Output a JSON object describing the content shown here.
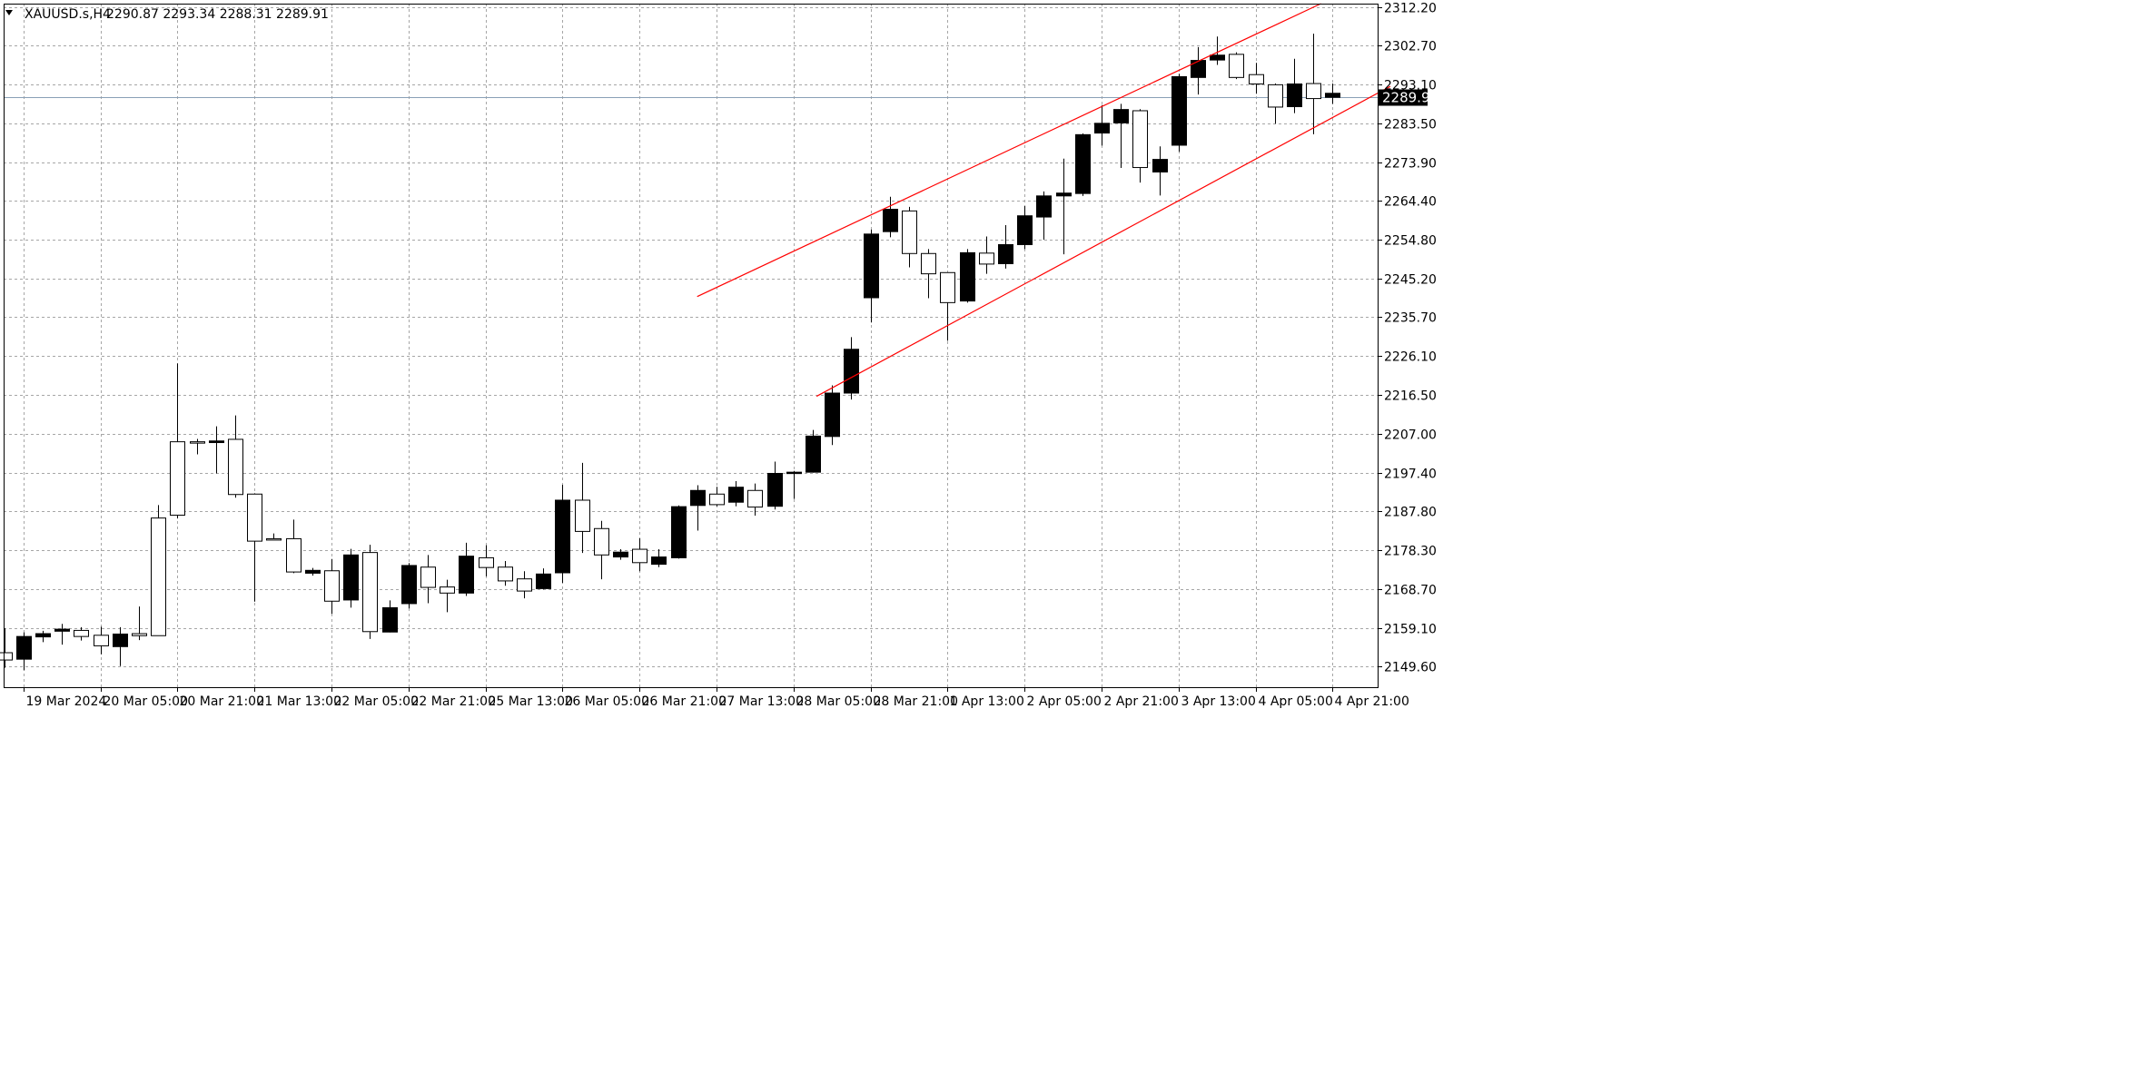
{
  "window": {
    "symbol": "XAUUSD.s,H4",
    "ohlc": "2290.87 2293.34 2288.31 2289.91",
    "menu_icon": "triangle-down-icon"
  },
  "colors": {
    "background": "#ffffff",
    "grid": "#a6a6a6",
    "frame": "#000000",
    "text": "#000000",
    "bull_body": "#ffffff",
    "bear_body": "#000000",
    "trendline": "#ff0000",
    "price_line": "#8aa0b6",
    "price_tag_bg": "#000000",
    "price_tag_text": "#ffffff"
  },
  "chart_data": {
    "type": "candlestick",
    "title": "XAUUSD.s,H4",
    "current_price": 2289.91,
    "current_price_label": "2289.91",
    "ylim": [
      2144.5,
      2313.0
    ],
    "y_ticks": [
      "2312.20",
      "2302.70",
      "2293.10",
      "2283.50",
      "2273.90",
      "2264.40",
      "2254.80",
      "2245.20",
      "2235.70",
      "2226.10",
      "2216.50",
      "2207.00",
      "2197.40",
      "2187.80",
      "2178.30",
      "2168.70",
      "2159.10",
      "2149.60"
    ],
    "x_ticks": [
      {
        "label": "19 Mar 2024",
        "bar": 1
      },
      {
        "label": "20 Mar 05:00",
        "bar": 5
      },
      {
        "label": "20 Mar 21:00",
        "bar": 9
      },
      {
        "label": "21 Mar 13:00",
        "bar": 13
      },
      {
        "label": "22 Mar 05:00",
        "bar": 17
      },
      {
        "label": "22 Mar 21:00",
        "bar": 21
      },
      {
        "label": "25 Mar 13:00",
        "bar": 25
      },
      {
        "label": "26 Mar 05:00",
        "bar": 29
      },
      {
        "label": "26 Mar 21:00",
        "bar": 33
      },
      {
        "label": "27 Mar 13:00",
        "bar": 37
      },
      {
        "label": "28 Mar 05:00",
        "bar": 41
      },
      {
        "label": "28 Mar 21:00",
        "bar": 45
      },
      {
        "label": "1 Apr 13:00",
        "bar": 49
      },
      {
        "label": "2 Apr 05:00",
        "bar": 53
      },
      {
        "label": "2 Apr 21:00",
        "bar": 57
      },
      {
        "label": "3 Apr 13:00",
        "bar": 61
      },
      {
        "label": "4 Apr 05:00",
        "bar": 65
      },
      {
        "label": "4 Apr 21:00",
        "bar": 69
      }
    ],
    "candles": [
      {
        "o": 2151.2,
        "h": 2159.0,
        "l": 2149.3,
        "c": 2153.0
      },
      {
        "o": 2157.0,
        "h": 2158.0,
        "l": 2148.7,
        "c": 2151.4
      },
      {
        "o": 2157.7,
        "h": 2158.4,
        "l": 2155.6,
        "c": 2156.9
      },
      {
        "o": 2158.8,
        "h": 2160.1,
        "l": 2155.0,
        "c": 2158.3
      },
      {
        "o": 2157.0,
        "h": 2159.3,
        "l": 2156.0,
        "c": 2158.5
      },
      {
        "o": 2154.7,
        "h": 2159.4,
        "l": 2152.6,
        "c": 2157.3
      },
      {
        "o": 2157.6,
        "h": 2159.3,
        "l": 2149.7,
        "c": 2154.5
      },
      {
        "o": 2157.2,
        "h": 2164.4,
        "l": 2156.1,
        "c": 2157.7
      },
      {
        "o": 2157.2,
        "h": 2189.4,
        "l": 2157.2,
        "c": 2186.2
      },
      {
        "o": 2186.9,
        "h": 2224.3,
        "l": 2186.1,
        "c": 2205.0
      },
      {
        "o": 2205.0,
        "h": 2205.7,
        "l": 2201.9,
        "c": 2205.0
      },
      {
        "o": 2205.2,
        "h": 2208.8,
        "l": 2197.2,
        "c": 2204.8
      },
      {
        "o": 2192.0,
        "h": 2211.5,
        "l": 2191.2,
        "c": 2205.6
      },
      {
        "o": 2180.5,
        "h": 2192.3,
        "l": 2165.6,
        "c": 2192.1
      },
      {
        "o": 2180.9,
        "h": 2182.4,
        "l": 2180.9,
        "c": 2181.1
      },
      {
        "o": 2172.9,
        "h": 2185.8,
        "l": 2172.6,
        "c": 2181.1
      },
      {
        "o": 2173.3,
        "h": 2173.9,
        "l": 2172.0,
        "c": 2172.6
      },
      {
        "o": 2165.7,
        "h": 2176.1,
        "l": 2162.6,
        "c": 2173.2
      },
      {
        "o": 2177.1,
        "h": 2178.6,
        "l": 2164.1,
        "c": 2166.0
      },
      {
        "o": 2158.2,
        "h": 2179.6,
        "l": 2156.4,
        "c": 2177.7
      },
      {
        "o": 2164.1,
        "h": 2165.9,
        "l": 2158.0,
        "c": 2158.1
      },
      {
        "o": 2174.5,
        "h": 2175.1,
        "l": 2163.9,
        "c": 2165.1
      },
      {
        "o": 2169.1,
        "h": 2177.1,
        "l": 2165.2,
        "c": 2174.1
      },
      {
        "o": 2167.7,
        "h": 2171.0,
        "l": 2163.0,
        "c": 2169.2
      },
      {
        "o": 2176.8,
        "h": 2180.1,
        "l": 2167.0,
        "c": 2167.7
      },
      {
        "o": 2174.0,
        "h": 2179.5,
        "l": 2171.8,
        "c": 2176.4
      },
      {
        "o": 2170.7,
        "h": 2175.6,
        "l": 2169.5,
        "c": 2174.1
      },
      {
        "o": 2168.2,
        "h": 2173.1,
        "l": 2166.4,
        "c": 2171.2
      },
      {
        "o": 2172.4,
        "h": 2173.8,
        "l": 2168.6,
        "c": 2168.8
      },
      {
        "o": 2190.6,
        "h": 2194.4,
        "l": 2170.2,
        "c": 2172.7
      },
      {
        "o": 2182.9,
        "h": 2199.8,
        "l": 2177.6,
        "c": 2190.6
      },
      {
        "o": 2177.1,
        "h": 2185.5,
        "l": 2171.1,
        "c": 2183.6
      },
      {
        "o": 2177.8,
        "h": 2178.5,
        "l": 2175.9,
        "c": 2176.6
      },
      {
        "o": 2175.2,
        "h": 2181.2,
        "l": 2173.1,
        "c": 2178.5
      },
      {
        "o": 2176.6,
        "h": 2178.5,
        "l": 2174.1,
        "c": 2174.8
      },
      {
        "o": 2189.0,
        "h": 2189.3,
        "l": 2176.2,
        "c": 2176.4
      },
      {
        "o": 2193.0,
        "h": 2194.3,
        "l": 2183.1,
        "c": 2189.3
      },
      {
        "o": 2189.5,
        "h": 2193.9,
        "l": 2189.1,
        "c": 2192.1
      },
      {
        "o": 2193.8,
        "h": 2195.3,
        "l": 2189.1,
        "c": 2190.1
      },
      {
        "o": 2188.9,
        "h": 2194.7,
        "l": 2186.8,
        "c": 2193.0
      },
      {
        "o": 2197.2,
        "h": 2200.1,
        "l": 2188.3,
        "c": 2189.1
      },
      {
        "o": 2197.5,
        "h": 2197.8,
        "l": 2190.9,
        "c": 2197.3
      },
      {
        "o": 2206.4,
        "h": 2207.9,
        "l": 2197.4,
        "c": 2197.5
      },
      {
        "o": 2217.0,
        "h": 2218.9,
        "l": 2204.2,
        "c": 2206.3
      },
      {
        "o": 2227.8,
        "h": 2230.8,
        "l": 2215.4,
        "c": 2217.0
      },
      {
        "o": 2256.2,
        "h": 2257.3,
        "l": 2234.4,
        "c": 2240.5
      },
      {
        "o": 2262.3,
        "h": 2265.4,
        "l": 2255.4,
        "c": 2256.8
      },
      {
        "o": 2251.4,
        "h": 2262.9,
        "l": 2248.0,
        "c": 2261.9
      },
      {
        "o": 2246.4,
        "h": 2252.5,
        "l": 2240.4,
        "c": 2251.4
      },
      {
        "o": 2239.3,
        "h": 2246.1,
        "l": 2229.9,
        "c": 2246.7
      },
      {
        "o": 2251.6,
        "h": 2252.5,
        "l": 2239.3,
        "c": 2239.7
      },
      {
        "o": 2248.8,
        "h": 2255.6,
        "l": 2246.4,
        "c": 2251.5
      },
      {
        "o": 2253.6,
        "h": 2258.4,
        "l": 2247.7,
        "c": 2248.9
      },
      {
        "o": 2260.7,
        "h": 2263.1,
        "l": 2252.5,
        "c": 2253.6
      },
      {
        "o": 2265.6,
        "h": 2266.7,
        "l": 2254.8,
        "c": 2260.4
      },
      {
        "o": 2266.3,
        "h": 2274.8,
        "l": 2251.2,
        "c": 2265.6
      },
      {
        "o": 2280.7,
        "h": 2281.0,
        "l": 2265.6,
        "c": 2266.2
      },
      {
        "o": 2283.5,
        "h": 2288.0,
        "l": 2278.0,
        "c": 2281.1
      },
      {
        "o": 2286.9,
        "h": 2288.3,
        "l": 2272.5,
        "c": 2283.6
      },
      {
        "o": 2272.6,
        "h": 2287.0,
        "l": 2268.9,
        "c": 2286.6
      },
      {
        "o": 2274.6,
        "h": 2277.8,
        "l": 2265.7,
        "c": 2271.5
      },
      {
        "o": 2295.0,
        "h": 2295.7,
        "l": 2276.5,
        "c": 2278.1
      },
      {
        "o": 2299.0,
        "h": 2302.3,
        "l": 2290.6,
        "c": 2294.8
      },
      {
        "o": 2300.3,
        "h": 2304.9,
        "l": 2297.9,
        "c": 2299.1
      },
      {
        "o": 2294.8,
        "h": 2301.0,
        "l": 2294.4,
        "c": 2300.5
      },
      {
        "o": 2293.2,
        "h": 2298.4,
        "l": 2290.8,
        "c": 2295.5
      },
      {
        "o": 2287.5,
        "h": 2293.3,
        "l": 2283.4,
        "c": 2293.0
      },
      {
        "o": 2293.2,
        "h": 2299.4,
        "l": 2286.0,
        "c": 2287.6
      },
      {
        "o": 2289.6,
        "h": 2305.6,
        "l": 2280.8,
        "c": 2293.3
      },
      {
        "o": 2290.9,
        "h": 2293.3,
        "l": 2288.3,
        "c": 2289.9
      }
    ],
    "trendlines": [
      {
        "from": {
          "bar": 36,
          "price": 2240.8
        },
        "to": {
          "bar": 68.4,
          "price": 2313.0
        }
      },
      {
        "from": {
          "bar": 42.2,
          "price": 2216.2
        },
        "to": {
          "bar": 72,
          "price": 2292.6
        }
      }
    ]
  }
}
